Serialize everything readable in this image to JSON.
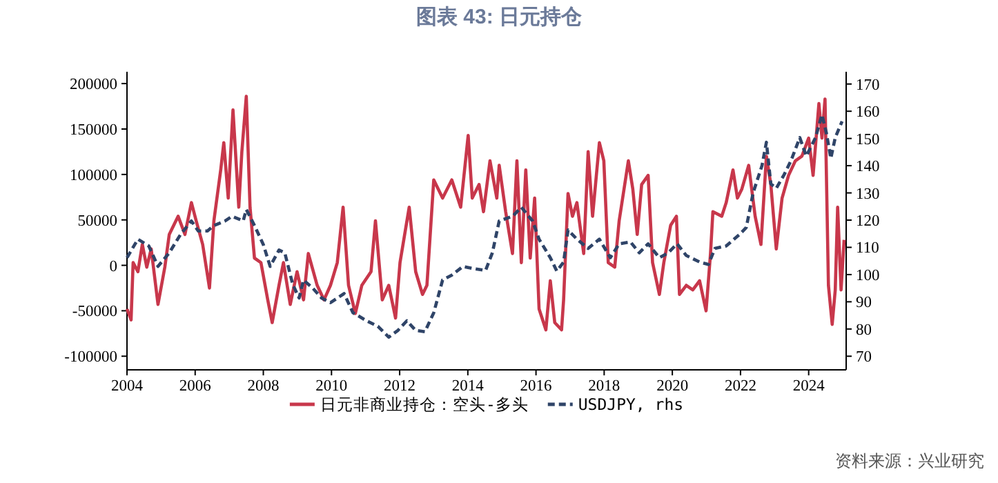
{
  "chart_data": {
    "type": "line",
    "title": "图表 43: 日元持仓",
    "xlim": [
      2004,
      2025.1
    ],
    "xticks": [
      2004,
      2006,
      2008,
      2010,
      2012,
      2014,
      2016,
      2018,
      2020,
      2022,
      2024
    ],
    "ylim": [
      -115000,
      213000
    ],
    "yticks": [
      -100000,
      -50000,
      0,
      50000,
      100000,
      150000,
      200000
    ],
    "y2lim": [
      65,
      174.5
    ],
    "y2ticks": [
      70,
      80,
      90,
      100,
      110,
      120,
      130,
      140,
      150,
      160,
      170
    ],
    "legend": "bottom",
    "annotations": [
      "资料来源：兴业研究"
    ],
    "series": [
      {
        "name": "日元非商业持仓：空头-多头",
        "color": "#c8374b",
        "line_style": "solid",
        "x": [
          2004.0,
          2004.12,
          2004.18,
          2004.32,
          2004.45,
          2004.58,
          2004.71,
          2004.91,
          2005.11,
          2005.24,
          2005.5,
          2005.7,
          2005.89,
          2006.03,
          2006.22,
          2006.42,
          2006.55,
          2006.75,
          2006.84,
          2006.97,
          2007.11,
          2007.28,
          2007.37,
          2007.5,
          2007.61,
          2007.74,
          2007.93,
          2008.13,
          2008.26,
          2008.46,
          2008.59,
          2008.79,
          2008.99,
          2009.18,
          2009.32,
          2009.58,
          2009.78,
          2009.97,
          2010.17,
          2010.34,
          2010.5,
          2010.7,
          2010.89,
          2011.16,
          2011.29,
          2011.49,
          2011.68,
          2011.88,
          2012.01,
          2012.28,
          2012.47,
          2012.67,
          2012.8,
          2013.0,
          2013.26,
          2013.53,
          2013.79,
          2014.01,
          2014.13,
          2014.33,
          2014.46,
          2014.65,
          2014.85,
          2014.92,
          2015.11,
          2015.31,
          2015.44,
          2015.57,
          2015.7,
          2015.83,
          2015.96,
          2016.09,
          2016.29,
          2016.42,
          2016.55,
          2016.75,
          2016.81,
          2016.94,
          2017.07,
          2017.2,
          2017.4,
          2017.53,
          2017.66,
          2017.86,
          2017.99,
          2018.12,
          2018.31,
          2018.44,
          2018.71,
          2018.84,
          2018.97,
          2019.1,
          2019.29,
          2019.42,
          2019.62,
          2019.75,
          2019.95,
          2020.12,
          2020.21,
          2020.41,
          2020.6,
          2020.8,
          2020.99,
          2021.12,
          2021.19,
          2021.45,
          2021.58,
          2021.78,
          2021.91,
          2022.04,
          2022.24,
          2022.43,
          2022.6,
          2022.76,
          2022.89,
          2023.05,
          2023.22,
          2023.41,
          2023.61,
          2023.8,
          2024.0,
          2024.13,
          2024.3,
          2024.39,
          2024.48,
          2024.58,
          2024.69,
          2024.78,
          2024.85,
          2024.95,
          2025.04
        ],
        "values": [
          -48000,
          -60000,
          3000,
          -7000,
          23000,
          -2000,
          18000,
          -43000,
          -2000,
          34000,
          54000,
          34000,
          69000,
          49000,
          23000,
          -25000,
          49000,
          105000,
          135000,
          74000,
          171000,
          64000,
          125000,
          186000,
          64000,
          8000,
          3000,
          -38000,
          -63000,
          -22000,
          3000,
          -43000,
          -7000,
          -38000,
          13000,
          -22000,
          -38000,
          -22000,
          3000,
          64000,
          -22000,
          -53000,
          -22000,
          -7000,
          49000,
          -38000,
          -22000,
          -58000,
          3000,
          64000,
          -7000,
          -32000,
          -22000,
          94000,
          74000,
          94000,
          64000,
          143000,
          74000,
          89000,
          59000,
          115000,
          74000,
          110000,
          59000,
          13000,
          115000,
          3000,
          105000,
          8000,
          74000,
          -48000,
          -71000,
          -17000,
          -63000,
          -71000,
          -38000,
          79000,
          54000,
          69000,
          13000,
          125000,
          54000,
          135000,
          115000,
          3000,
          -2000,
          49000,
          115000,
          84000,
          34000,
          89000,
          99000,
          3000,
          -32000,
          3000,
          44000,
          54000,
          -32000,
          -22000,
          -27000,
          -17000,
          -50000,
          13000,
          59000,
          54000,
          69000,
          105000,
          74000,
          84000,
          110000,
          54000,
          23000,
          120000,
          89000,
          18000,
          74000,
          99000,
          115000,
          120000,
          140000,
          99000,
          178000,
          140000,
          183000,
          -22000,
          -65000,
          -27000,
          64000,
          -27000,
          28000
        ]
      },
      {
        "name": "USDJPY, rhs",
        "color": "#2f4468",
        "axis": "y2",
        "line_style": "dashed",
        "x": [
          2004.0,
          2004.32,
          2004.64,
          2004.91,
          2005.24,
          2005.57,
          2005.89,
          2006.09,
          2006.36,
          2006.55,
          2006.88,
          2007.08,
          2007.41,
          2007.5,
          2007.74,
          2008.0,
          2008.2,
          2008.46,
          2008.63,
          2008.86,
          2009.05,
          2009.18,
          2009.45,
          2009.71,
          2009.97,
          2010.37,
          2010.63,
          2011.03,
          2011.36,
          2011.68,
          2011.95,
          2012.21,
          2012.47,
          2012.74,
          2013.0,
          2013.26,
          2013.53,
          2013.86,
          2014.12,
          2014.52,
          2014.72,
          2014.92,
          2015.31,
          2015.57,
          2015.9,
          2016.09,
          2016.42,
          2016.61,
          2016.81,
          2016.94,
          2017.2,
          2017.53,
          2017.86,
          2018.18,
          2018.44,
          2018.77,
          2019.03,
          2019.29,
          2019.62,
          2019.88,
          2020.14,
          2020.41,
          2020.8,
          2021.06,
          2021.25,
          2021.58,
          2021.97,
          2022.17,
          2022.37,
          2022.63,
          2022.76,
          2022.89,
          2023.05,
          2023.28,
          2023.48,
          2023.74,
          2023.93,
          2024.2,
          2024.39,
          2024.52,
          2024.65,
          2024.78,
          2024.98
        ],
        "values": [
          106.2,
          113,
          110.5,
          103,
          108,
          114.7,
          119.7,
          116,
          116,
          118,
          119.7,
          121.4,
          119.7,
          123.9,
          118,
          111,
          103,
          109,
          108,
          96.5,
          91.4,
          98,
          95,
          91.4,
          89.7,
          93,
          86,
          83,
          81,
          77,
          79.5,
          83,
          79.5,
          79,
          86,
          98,
          99.8,
          103,
          102.3,
          101.5,
          108,
          119.7,
          121.4,
          124.7,
          119.7,
          113,
          106.2,
          101.3,
          104.6,
          116.4,
          113,
          109.6,
          113,
          106.2,
          111.3,
          112,
          108,
          111.3,
          106.2,
          108,
          111.3,
          107,
          104.6,
          103.7,
          109.6,
          110.5,
          114.7,
          117.3,
          130,
          140,
          148.6,
          133.3,
          131.7,
          136.7,
          141.8,
          150.3,
          143.5,
          150.3,
          158.7,
          152,
          142.7,
          150.3,
          156.3
        ]
      }
    ]
  }
}
